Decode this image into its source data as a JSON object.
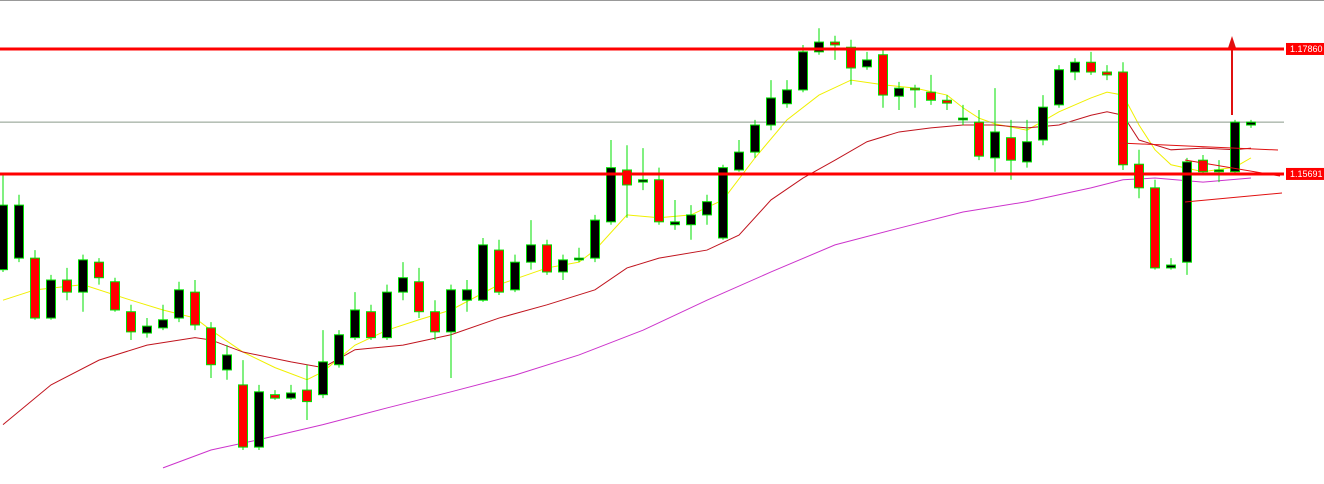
{
  "chart_data": {
    "type": "candlestick",
    "ylim": [
      1.1031,
      1.1871
    ],
    "up_color": "#000000",
    "down_color": "#ff0000",
    "wick_color": "#00e000",
    "open": [
      1.1403,
      1.1423,
      1.1423,
      1.1319,
      1.1385,
      1.1364,
      1.1416,
      1.1382,
      1.133,
      1.1293,
      1.1302,
      1.1319,
      1.1364,
      1.1302,
      1.1229,
      1.1203,
      1.1095,
      1.1186,
      1.118,
      1.1194,
      1.1186,
      1.1238,
      1.1285,
      1.133,
      1.1285,
      1.1364,
      1.1382,
      1.133,
      1.1295,
      1.135,
      1.135,
      1.1437,
      1.1368,
      1.1416,
      1.1446,
      1.1399,
      1.142,
      1.1423,
      1.1486,
      1.1576,
      1.1555,
      1.1559,
      1.1481,
      1.1481,
      1.1498,
      1.1458,
      1.1576,
      1.1607,
      1.1654,
      1.1691,
      1.1715,
      1.1781,
      1.1798,
      1.1789,
      1.1755,
      1.1776,
      1.1704,
      1.1718,
      1.1711,
      1.1697,
      1.1663,
      1.1659,
      1.1597,
      1.1632,
      1.159,
      1.1628,
      1.1689,
      1.1746,
      1.1763,
      1.1746,
      1.1746,
      1.1586,
      1.1545,
      1.1406,
      1.1416,
      1.1593,
      1.1573,
      1.1573,
      1.1654
    ],
    "high": [
      1.1567,
      1.1533,
      1.1437,
      1.1394,
      1.1406,
      1.1429,
      1.1423,
      1.1389,
      1.1342,
      1.1319,
      1.1342,
      1.1382,
      1.1385,
      1.1312,
      1.1272,
      1.1246,
      1.1203,
      1.1194,
      1.1203,
      1.1238,
      1.1298,
      1.1298,
      1.1364,
      1.1342,
      1.1377,
      1.1416,
      1.1406,
      1.135,
      1.1377,
      1.1385,
      1.1458,
      1.1455,
      1.1429,
      1.1489,
      1.1455,
      1.1429,
      1.1441,
      1.1498,
      1.1628,
      1.1619,
      1.1614,
      1.158,
      1.1524,
      1.1515,
      1.1533,
      1.1585,
      1.1628,
      1.1663,
      1.1732,
      1.1732,
      1.1793,
      1.1822,
      1.1809,
      1.1802,
      1.1781,
      1.1784,
      1.1729,
      1.1724,
      1.1741,
      1.1706,
      1.1689,
      1.168,
      1.1718,
      1.1663,
      1.1663,
      1.1706,
      1.1758,
      1.177,
      1.1781,
      1.1758,
      1.1763,
      1.1611,
      1.1559,
      1.1423,
      1.1597,
      1.1602,
      1.1593,
      1.1663,
      1.1663
    ],
    "low": [
      1.1399,
      1.1416,
      1.1316,
      1.1316,
      1.135,
      1.133,
      1.1377,
      1.133,
      1.1281,
      1.1285,
      1.1298,
      1.1312,
      1.1298,
      1.1215,
      1.1212,
      1.109,
      1.109,
      1.1177,
      1.1177,
      1.1142,
      1.118,
      1.1233,
      1.1281,
      1.1281,
      1.1281,
      1.135,
      1.1319,
      1.1281,
      1.1215,
      1.133,
      1.1347,
      1.1359,
      1.1364,
      1.1403,
      1.1394,
      1.1385,
      1.1416,
      1.1416,
      1.1481,
      1.1493,
      1.1541,
      1.1481,
      1.1472,
      1.1455,
      1.1481,
      1.1455,
      1.1573,
      1.1597,
      1.1645,
      1.1684,
      1.1711,
      1.1776,
      1.1767,
      1.1724,
      1.175,
      1.1684,
      1.168,
      1.1684,
      1.1689,
      1.168,
      1.1654,
      1.1593,
      1.1573,
      1.1559,
      1.158,
      1.1619,
      1.1684,
      1.1732,
      1.1741,
      1.1732,
      1.1576,
      1.1527,
      1.1403,
      1.1403,
      1.1394,
      1.1567,
      1.1555,
      1.1567,
      1.1649
    ],
    "close": [
      1.1515,
      1.1515,
      1.1319,
      1.1385,
      1.1364,
      1.142,
      1.1389,
      1.1333,
      1.1295,
      1.1305,
      1.1316,
      1.1368,
      1.1307,
      1.1238,
      1.1255,
      1.1095,
      1.1191,
      1.118,
      1.1189,
      1.1174,
      1.1243,
      1.129,
      1.1333,
      1.1285,
      1.1364,
      1.1389,
      1.133,
      1.1295,
      1.1368,
      1.1368,
      1.1446,
      1.1364,
      1.1416,
      1.1446,
      1.1399,
      1.142,
      1.1423,
      1.1489,
      1.158,
      1.155,
      1.1559,
      1.1486,
      1.1486,
      1.1498,
      1.1521,
      1.158,
      1.1607,
      1.1654,
      1.1701,
      1.1715,
      1.1781,
      1.1798,
      1.1793,
      1.1753,
      1.1767,
      1.1706,
      1.1718,
      1.1715,
      1.1697,
      1.1692,
      1.1666,
      1.16,
      1.1642,
      1.1593,
      1.1625,
      1.1685,
      1.175,
      1.1763,
      1.1746,
      1.1741,
      1.1585,
      1.1545,
      1.1406,
      1.1411,
      1.159,
      1.1573,
      1.1576,
      1.1659,
      1.1659
    ],
    "indicators": [
      {
        "color": "#f0f000",
        "x": [
          0,
          2,
          5,
          8,
          10,
          12,
          13,
          15,
          17,
          19,
          20,
          22,
          24,
          26,
          28,
          31,
          34,
          36,
          37,
          39,
          41,
          43,
          45,
          47,
          49,
          51,
          53,
          55,
          57,
          59,
          60,
          61,
          62,
          64,
          66,
          68,
          69,
          70,
          71,
          72,
          73,
          75,
          77,
          78
        ],
        "values": [
          1.135,
          1.1368,
          1.1377,
          1.135,
          1.1333,
          1.1319,
          1.1298,
          1.126,
          1.1233,
          1.1212,
          1.1226,
          1.1272,
          1.1298,
          1.1316,
          1.1333,
          1.1377,
          1.1406,
          1.1416,
          1.1437,
          1.1498,
          1.1493,
          1.1498,
          1.1524,
          1.1597,
          1.1663,
          1.1706,
          1.1732,
          1.1724,
          1.1718,
          1.1706,
          1.1684,
          1.1666,
          1.1656,
          1.1645,
          1.1677,
          1.1701,
          1.1711,
          1.1706,
          1.1654,
          1.1611,
          1.1585,
          1.1573,
          1.1581,
          1.1597
        ]
      },
      {
        "color": "#c0141e",
        "x": [
          0,
          3,
          6,
          9,
          12,
          13,
          15,
          18,
          20,
          22,
          25,
          28,
          31,
          34,
          37,
          39,
          41,
          44,
          46,
          48,
          50,
          52,
          54,
          56,
          58,
          60,
          62,
          64,
          66,
          68,
          69,
          70,
          71,
          73,
          75,
          77,
          78
        ],
        "values": [
          1.1134,
          1.1203,
          1.1246,
          1.1272,
          1.1285,
          1.1281,
          1.126,
          1.1243,
          1.1233,
          1.1264,
          1.1272,
          1.129,
          1.1319,
          1.1342,
          1.1368,
          1.1406,
          1.1423,
          1.1437,
          1.1463,
          1.1524,
          1.1562,
          1.1593,
          1.1625,
          1.1642,
          1.1649,
          1.1654,
          1.1654,
          1.1649,
          1.1654,
          1.1671,
          1.1677,
          1.1671,
          1.1628,
          1.1611,
          1.1614,
          1.1611,
          1.1614
        ]
      },
      {
        "color": "#cc33cc",
        "x": [
          10,
          13,
          16,
          20,
          24,
          28,
          32,
          36,
          40,
          44,
          48,
          52,
          56,
          60,
          64,
          68,
          70,
          72,
          75,
          78
        ],
        "values": [
          1.1059,
          1.109,
          1.1108,
          1.1134,
          1.1163,
          1.1191,
          1.122,
          1.1255,
          1.1298,
          1.135,
          1.1399,
          1.1446,
          1.1475,
          1.1503,
          1.1521,
          1.1545,
          1.1559,
          1.1562,
          1.1555,
          1.1562
        ]
      }
    ],
    "levels": [
      {
        "value": 1.1786,
        "label": "1.17860"
      },
      {
        "value": 1.15691,
        "label": "1.15691"
      }
    ],
    "level_color": "#ff0000"
  }
}
